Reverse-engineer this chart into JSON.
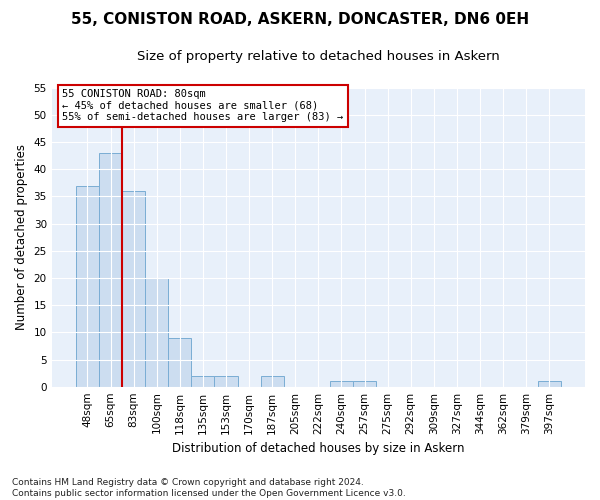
{
  "title": "55, CONISTON ROAD, ASKERN, DONCASTER, DN6 0EH",
  "subtitle": "Size of property relative to detached houses in Askern",
  "xlabel": "Distribution of detached houses by size in Askern",
  "ylabel": "Number of detached properties",
  "categories": [
    "48sqm",
    "65sqm",
    "83sqm",
    "100sqm",
    "118sqm",
    "135sqm",
    "153sqm",
    "170sqm",
    "187sqm",
    "205sqm",
    "222sqm",
    "240sqm",
    "257sqm",
    "275sqm",
    "292sqm",
    "309sqm",
    "327sqm",
    "344sqm",
    "362sqm",
    "379sqm",
    "397sqm"
  ],
  "values": [
    37,
    43,
    36,
    20,
    9,
    2,
    2,
    0,
    2,
    0,
    0,
    1,
    1,
    0,
    0,
    0,
    0,
    0,
    0,
    0,
    1
  ],
  "bar_color": "#ccddf0",
  "bar_edge_color": "#7aadd4",
  "vline_x": 1.5,
  "vline_color": "#cc0000",
  "ylim": [
    0,
    55
  ],
  "yticks": [
    0,
    5,
    10,
    15,
    20,
    25,
    30,
    35,
    40,
    45,
    50,
    55
  ],
  "annotation_text": "55 CONISTON ROAD: 80sqm\n← 45% of detached houses are smaller (68)\n55% of semi-detached houses are larger (83) →",
  "annotation_box_facecolor": "#ffffff",
  "annotation_box_edgecolor": "#cc0000",
  "footer": "Contains HM Land Registry data © Crown copyright and database right 2024.\nContains public sector information licensed under the Open Government Licence v3.0.",
  "fig_facecolor": "#ffffff",
  "ax_facecolor": "#e8f0fa",
  "grid_color": "#ffffff",
  "title_fontsize": 11,
  "subtitle_fontsize": 9.5,
  "axis_label_fontsize": 8.5,
  "tick_fontsize": 7.5,
  "footer_fontsize": 6.5,
  "annotation_fontsize": 7.5
}
